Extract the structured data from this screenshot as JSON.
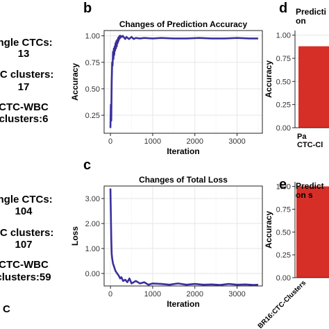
{
  "left_panel": {
    "top": [
      "ingle CTCs:",
      "13",
      "TC clusters:",
      "17",
      "CTC-WBC",
      "clusters:6"
    ],
    "bottom": [
      "ingle CTCs:",
      "104",
      "TC clusters:",
      "107",
      "CTC-WBC",
      "clusters:59"
    ],
    "bottom_partial": "C"
  },
  "colors": {
    "line": "#3a2f9c",
    "bar": "#d62f27",
    "panel_bg": "#ffffff",
    "grid": "#e6e6e6"
  },
  "chart_data": [
    {
      "panel": "b",
      "type": "line",
      "title": "Changes of Prediction Accuracy",
      "xlabel": "Iteration",
      "ylabel": "Accuracy",
      "xlim": [
        -150,
        3600
      ],
      "ylim": [
        0.08,
        1.05
      ],
      "xticks": [
        0,
        1000,
        2000,
        3000
      ],
      "xtick_labels": [
        "0",
        "1000",
        "2000",
        "3000"
      ],
      "yticks": [
        0.25,
        0.5,
        0.75,
        1.0
      ],
      "ytick_labels": [
        "0.25",
        "0.50",
        "0.75",
        "1.00"
      ],
      "grid": true,
      "series": [
        {
          "x": [
            0,
            10,
            20,
            30,
            40,
            50,
            60,
            70,
            80,
            90,
            100,
            110,
            120,
            130,
            140,
            150,
            160,
            170,
            180,
            190,
            200,
            210,
            220,
            230,
            240,
            250,
            270,
            290,
            310,
            330,
            350,
            380,
            410,
            440,
            470,
            500,
            550,
            600,
            700,
            800,
            1000,
            1200,
            1500,
            1800,
            2100,
            2400,
            2700,
            3000,
            3300,
            3500
          ],
          "y": [
            0.13,
            0.35,
            0.2,
            0.55,
            0.75,
            0.72,
            0.85,
            0.78,
            0.88,
            0.82,
            0.9,
            0.86,
            0.93,
            0.88,
            0.95,
            0.9,
            0.96,
            0.93,
            0.98,
            0.95,
            0.99,
            0.97,
            1.0,
            0.98,
            1.0,
            0.99,
            0.99,
            1.0,
            0.99,
            0.98,
            0.97,
            0.99,
            0.98,
            0.97,
            0.98,
            0.99,
            0.97,
            0.98,
            0.975,
            0.98,
            0.975,
            0.98,
            0.975,
            0.975,
            0.98,
            0.975,
            0.975,
            0.98,
            0.975,
            0.975
          ]
        }
      ]
    },
    {
      "panel": "c",
      "type": "line",
      "title": "Changes of Total Loss",
      "xlabel": "Iteration",
      "ylabel": "Loss",
      "xlim": [
        -150,
        3600
      ],
      "ylim": [
        -0.5,
        3.5
      ],
      "xticks": [
        0,
        1000,
        2000,
        3000
      ],
      "xtick_labels": [
        "0",
        "1000",
        "2000",
        "3000"
      ],
      "yticks": [
        0.0,
        1.0,
        2.0,
        3.0
      ],
      "ytick_labels": [
        "0.00",
        "1.00",
        "2.00",
        "3.00"
      ],
      "grid": true,
      "series": [
        {
          "x": [
            0,
            10,
            20,
            30,
            40,
            50,
            60,
            80,
            100,
            120,
            140,
            160,
            180,
            200,
            230,
            260,
            300,
            350,
            400,
            450,
            500,
            550,
            600,
            700,
            800,
            900,
            1000,
            1200,
            1400,
            1600,
            1800,
            2000,
            2200,
            2400,
            2600,
            2800,
            3000,
            3200,
            3400,
            3500
          ],
          "y": [
            3.4,
            2.4,
            1.4,
            0.8,
            0.6,
            0.5,
            0.4,
            0.3,
            0.2,
            0.1,
            0.05,
            0.0,
            -0.05,
            -0.1,
            -0.2,
            -0.15,
            -0.3,
            -0.25,
            -0.35,
            -0.2,
            -0.4,
            -0.35,
            -0.3,
            -0.4,
            -0.35,
            -0.45,
            -0.4,
            -0.42,
            -0.45,
            -0.4,
            -0.45,
            -0.42,
            -0.45,
            -0.44,
            -0.46,
            -0.42,
            -0.45,
            -0.44,
            -0.46,
            -0.45
          ]
        }
      ]
    },
    {
      "panel": "d",
      "type": "bar",
      "title": "Predicti... on ...",
      "title_lines": [
        "Predicti",
        "on"
      ],
      "ylabel": "Accuracy",
      "ylim": [
        0,
        1.05
      ],
      "yticks": [
        0.0,
        0.25,
        0.5,
        0.75,
        1.0
      ],
      "ytick_labels": [
        "0.00",
        "0.25",
        "0.50",
        "0.75",
        "1.00"
      ],
      "categories": [
        "Pa... CTC-Cl..."
      ],
      "category_lines": [
        "Pa",
        "CTC-Cl"
      ],
      "values": [
        0.88
      ]
    },
    {
      "panel": "e",
      "type": "bar",
      "title": "Predict... on s...",
      "title_lines": [
        "Predict",
        "on s"
      ],
      "ylabel": "Accuracy",
      "ylim": [
        0,
        1.05
      ],
      "yticks": [
        0.0,
        0.25,
        0.5,
        0.75,
        1.0
      ],
      "ytick_labels": [
        "0.00",
        "0.25",
        "0.50",
        "0.75",
        "1.00"
      ],
      "categories": [
        "BR16:CTC-Clusters"
      ],
      "values": [
        1.0
      ]
    }
  ]
}
